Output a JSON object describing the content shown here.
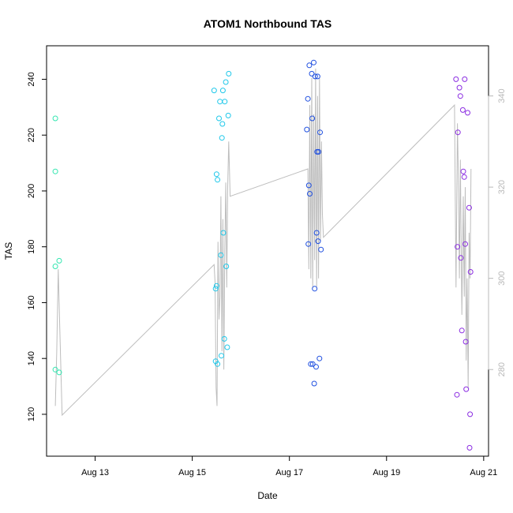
{
  "chart_data": {
    "type": "scatter",
    "title": "ATOM1 Northbound TAS",
    "xlabel": "Date",
    "ylabel": "TAS",
    "x_ticks": [
      "Aug 13",
      "Aug 15",
      "Aug 17",
      "Aug 19",
      "Aug 21"
    ],
    "x_tick_values": [
      13,
      15,
      17,
      19,
      21
    ],
    "xlim": [
      12.0,
      21.1
    ],
    "y_ticks": [
      120,
      140,
      160,
      180,
      200,
      220,
      240
    ],
    "ylim": [
      105,
      252
    ],
    "y2_ticks": [
      280,
      300,
      320,
      340
    ],
    "y2lim": [
      261,
      351
    ],
    "series": [
      {
        "color": "#33e6b0",
        "x": [
          12.18,
          12.18,
          12.18,
          12.18,
          12.26,
          12.26
        ],
        "y": [
          226,
          207,
          173,
          136,
          175,
          135
        ]
      },
      {
        "color": "#1fc8ea",
        "x": [
          15.45,
          15.48,
          15.48,
          15.5,
          15.5,
          15.52,
          15.52,
          15.55,
          15.57,
          15.59,
          15.6,
          15.61,
          15.62,
          15.63,
          15.64,
          15.66,
          15.67,
          15.69,
          15.7,
          15.72,
          15.74,
          15.75
        ],
        "y": [
          236,
          165,
          139,
          206,
          166,
          138,
          204,
          226,
          232,
          177,
          141,
          219,
          224,
          236,
          185,
          147,
          232,
          239,
          173,
          144,
          227,
          242
        ]
      },
      {
        "color": "#1f4fe0",
        "x": [
          17.36,
          17.38,
          17.39,
          17.4,
          17.41,
          17.42,
          17.44,
          17.46,
          17.47,
          17.48,
          17.5,
          17.51,
          17.52,
          17.53,
          17.55,
          17.56,
          17.57,
          17.58,
          17.59,
          17.6,
          17.62,
          17.63,
          17.65
        ],
        "y": [
          222,
          233,
          181,
          202,
          245,
          199,
          138,
          242,
          226,
          138,
          246,
          131,
          165,
          241,
          137,
          185,
          214,
          241,
          182,
          214,
          140,
          221,
          179
        ]
      },
      {
        "color": "#8a2be2",
        "x": [
          20.43,
          20.45,
          20.46,
          20.47,
          20.5,
          20.52,
          20.53,
          20.55,
          20.57,
          20.58,
          20.6,
          20.61,
          20.62,
          20.63,
          20.64,
          20.67,
          20.7,
          20.71,
          20.72,
          20.73
        ],
        "y": [
          240,
          127,
          180,
          221,
          237,
          234,
          176,
          150,
          229,
          207,
          205,
          240,
          181,
          146,
          129,
          228,
          194,
          108,
          120,
          171
        ]
      }
    ],
    "overlay_line": {
      "axis": "right",
      "color": "#bdbdbd",
      "x": [
        12.18,
        12.21,
        12.24,
        12.27,
        12.32,
        15.45,
        15.47,
        15.49,
        15.51,
        15.53,
        15.55,
        15.57,
        15.59,
        15.61,
        15.63,
        15.65,
        15.67,
        15.69,
        15.71,
        15.73,
        15.75,
        15.78,
        17.38,
        17.4,
        17.42,
        17.44,
        17.46,
        17.48,
        17.5,
        17.52,
        17.54,
        17.56,
        17.58,
        17.6,
        17.62,
        17.64,
        17.66,
        17.68,
        17.7,
        20.4,
        20.43,
        20.46,
        20.48,
        20.5,
        20.52,
        20.55,
        20.58,
        20.6,
        20.62,
        20.64,
        20.66,
        20.68,
        20.7,
        20.72,
        20.74
      ],
      "y": [
        272,
        284,
        302,
        290,
        270,
        303,
        299,
        276,
        272,
        308,
        291,
        296,
        318,
        284,
        313,
        280,
        306,
        321,
        298,
        320,
        330,
        318,
        324,
        302,
        338,
        300,
        344,
        298,
        336,
        304,
        346,
        298,
        340,
        300,
        344,
        308,
        330,
        314,
        309,
        338,
        298,
        334,
        322,
        300,
        326,
        292,
        318,
        296,
        320,
        282,
        300,
        276,
        310,
        300,
        324
      ]
    }
  }
}
